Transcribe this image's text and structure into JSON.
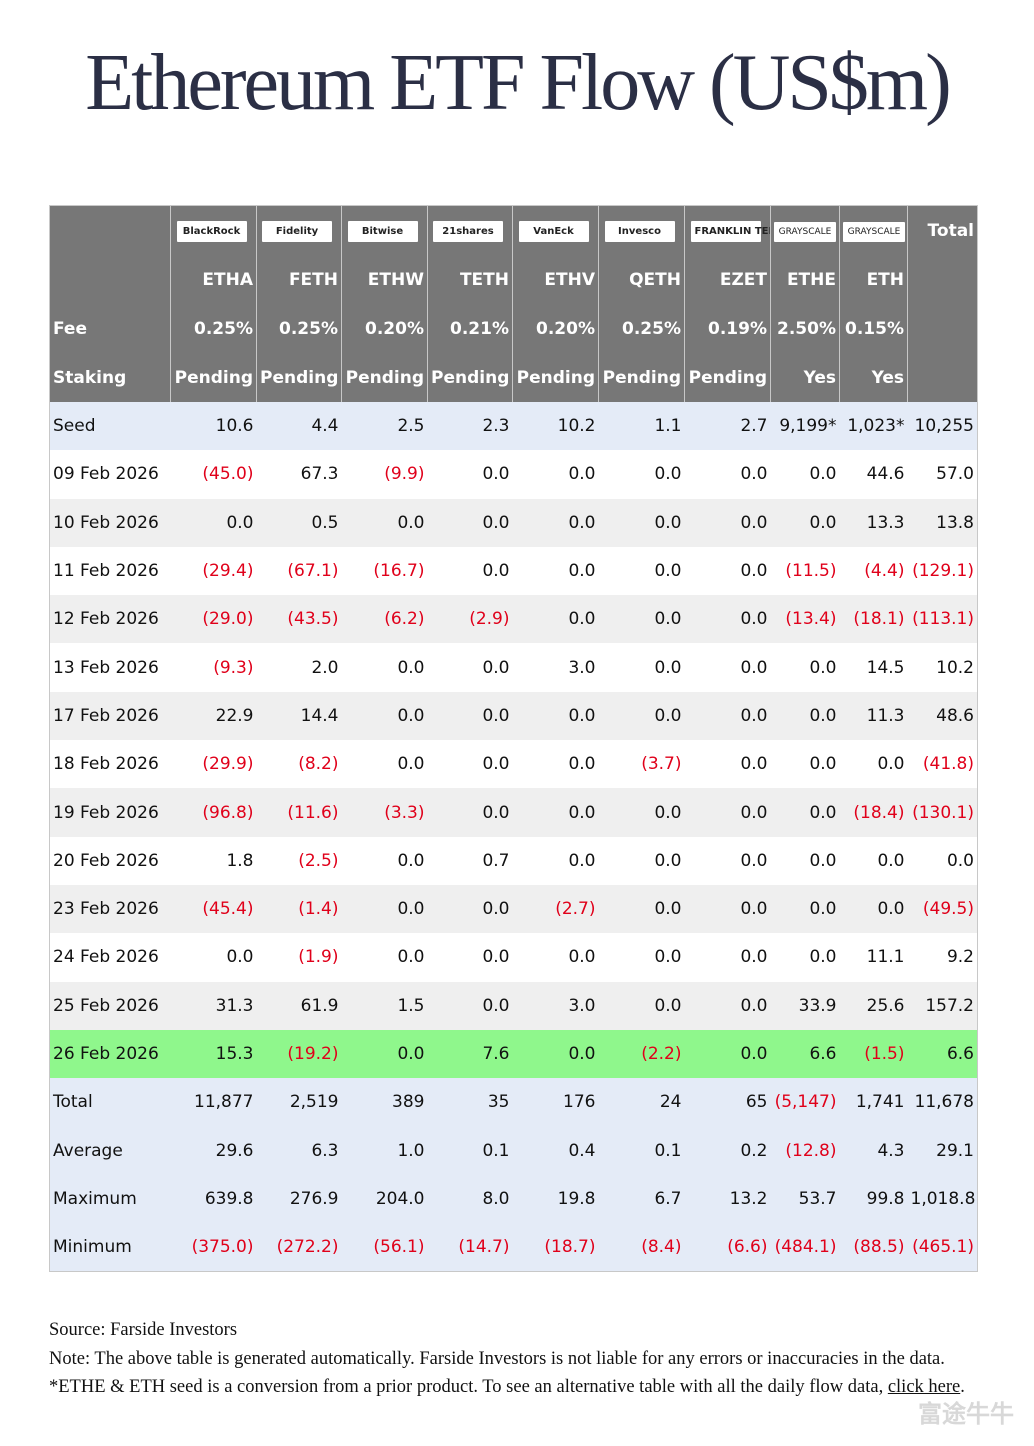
{
  "title": "Ethereum ETF Flow (US$m)",
  "table": {
    "logos": [
      "BlackRock",
      "Fidelity",
      "Bitwise",
      "21shares",
      "VanEck",
      "Invesco",
      "FRANKLIN TEMPLETON",
      "GRAYSCALE",
      "GRAYSCALE"
    ],
    "total_header": "Total",
    "tickers": [
      "ETHA",
      "FETH",
      "ETHW",
      "TETH",
      "ETHV",
      "QETH",
      "EZET",
      "ETHE",
      "ETH"
    ],
    "fee": {
      "label": "Fee",
      "values": [
        "0.25%",
        "0.25%",
        "0.20%",
        "0.21%",
        "0.20%",
        "0.25%",
        "0.19%",
        "2.50%",
        "0.15%"
      ]
    },
    "staking": {
      "label": "Staking",
      "values": [
        "Pending",
        "Pending",
        "Pending",
        "Pending",
        "Pending",
        "Pending",
        "Pending",
        "Yes",
        "Yes"
      ]
    },
    "rows": [
      [
        "Seed",
        "10.6",
        "4.4",
        "2.5",
        "2.3",
        "10.2",
        "1.1",
        "2.7",
        "9,199*",
        "1,023*",
        "10,255"
      ],
      [
        "09 Feb 2026",
        "(45.0)",
        "67.3",
        "(9.9)",
        "0.0",
        "0.0",
        "0.0",
        "0.0",
        "0.0",
        "44.6",
        "57.0"
      ],
      [
        "10 Feb 2026",
        "0.0",
        "0.5",
        "0.0",
        "0.0",
        "0.0",
        "0.0",
        "0.0",
        "0.0",
        "13.3",
        "13.8"
      ],
      [
        "11 Feb 2026",
        "(29.4)",
        "(67.1)",
        "(16.7)",
        "0.0",
        "0.0",
        "0.0",
        "0.0",
        "(11.5)",
        "(4.4)",
        "(129.1)"
      ],
      [
        "12 Feb 2026",
        "(29.0)",
        "(43.5)",
        "(6.2)",
        "(2.9)",
        "0.0",
        "0.0",
        "0.0",
        "(13.4)",
        "(18.1)",
        "(113.1)"
      ],
      [
        "13 Feb 2026",
        "(9.3)",
        "2.0",
        "0.0",
        "0.0",
        "3.0",
        "0.0",
        "0.0",
        "0.0",
        "14.5",
        "10.2"
      ],
      [
        "17 Feb 2026",
        "22.9",
        "14.4",
        "0.0",
        "0.0",
        "0.0",
        "0.0",
        "0.0",
        "0.0",
        "11.3",
        "48.6"
      ],
      [
        "18 Feb 2026",
        "(29.9)",
        "(8.2)",
        "0.0",
        "0.0",
        "0.0",
        "(3.7)",
        "0.0",
        "0.0",
        "0.0",
        "(41.8)"
      ],
      [
        "19 Feb 2026",
        "(96.8)",
        "(11.6)",
        "(3.3)",
        "0.0",
        "0.0",
        "0.0",
        "0.0",
        "0.0",
        "(18.4)",
        "(130.1)"
      ],
      [
        "20 Feb 2026",
        "1.8",
        "(2.5)",
        "0.0",
        "0.7",
        "0.0",
        "0.0",
        "0.0",
        "0.0",
        "0.0",
        "0.0"
      ],
      [
        "23 Feb 2026",
        "(45.4)",
        "(1.4)",
        "0.0",
        "0.0",
        "(2.7)",
        "0.0",
        "0.0",
        "0.0",
        "0.0",
        "(49.5)"
      ],
      [
        "24 Feb 2026",
        "0.0",
        "(1.9)",
        "0.0",
        "0.0",
        "0.0",
        "0.0",
        "0.0",
        "0.0",
        "11.1",
        "9.2"
      ],
      [
        "25 Feb 2026",
        "31.3",
        "61.9",
        "1.5",
        "0.0",
        "3.0",
        "0.0",
        "0.0",
        "33.9",
        "25.6",
        "157.2"
      ],
      [
        "26 Feb 2026",
        "15.3",
        "(19.2)",
        "0.0",
        "7.6",
        "0.0",
        "(2.2)",
        "0.0",
        "6.6",
        "(1.5)",
        "6.6"
      ],
      [
        "Total",
        "11,877",
        "2,519",
        "389",
        "35",
        "176",
        "24",
        "65",
        "(5,147)",
        "1,741",
        "11,678"
      ],
      [
        "Average",
        "29.6",
        "6.3",
        "1.0",
        "0.1",
        "0.4",
        "0.1",
        "0.2",
        "(12.8)",
        "4.3",
        "29.1"
      ],
      [
        "Maximum",
        "639.8",
        "276.9",
        "204.0",
        "8.0",
        "19.8",
        "6.7",
        "13.2",
        "53.7",
        "99.8",
        "1,018.8"
      ],
      [
        "Minimum",
        "(375.0)",
        "(272.2)",
        "(56.1)",
        "(14.7)",
        "(18.7)",
        "(8.4)",
        "(6.6)",
        "(484.1)",
        "(88.5)",
        "(465.1)"
      ]
    ]
  },
  "footer": {
    "source": "Source: Farside Investors",
    "note": "Note: The above table is generated automatically. Farside Investors is not liable for any errors or inaccuracies in the data. *ETHE & ETH seed is a conversion from a prior product.  To see an alternative table with all the daily flow data,",
    "link": "click here",
    "note_end": "."
  },
  "watermark": "富途牛牛"
}
